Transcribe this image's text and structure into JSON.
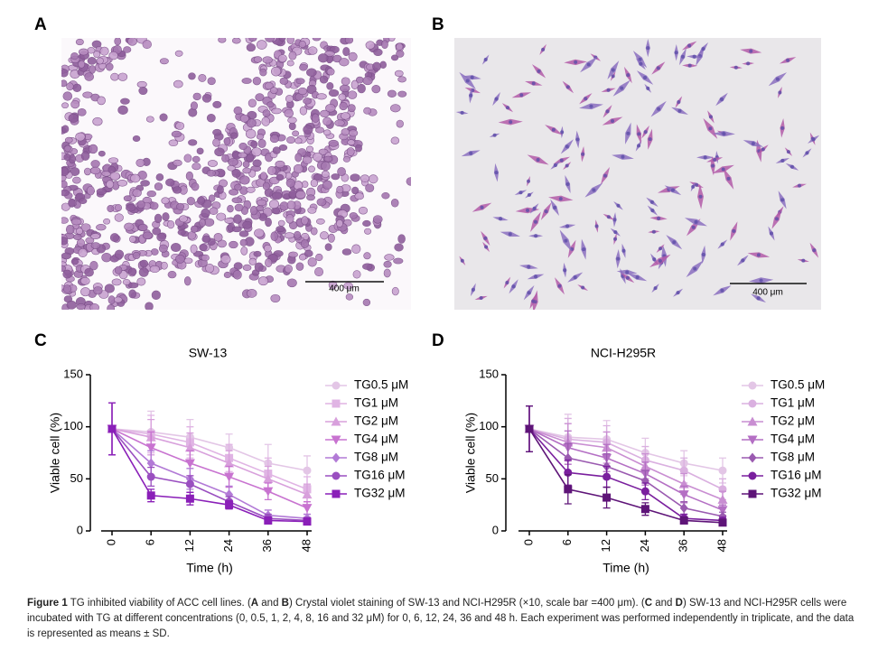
{
  "panel_labels": [
    "A",
    "B",
    "C",
    "D"
  ],
  "micrographs": [
    {
      "scale_bar": "400 μm"
    },
    {
      "scale_bar": "400 μm"
    }
  ],
  "chart_data": [
    {
      "type": "line",
      "title": "SW-13",
      "x_label": "Time (h)",
      "y_label": "Viable cell (%)",
      "categories": [
        "0",
        "6",
        "12",
        "24",
        "36",
        "48"
      ],
      "ylim": [
        0,
        150
      ],
      "yticks": [
        0,
        50,
        100,
        150
      ],
      "series": [
        {
          "name": "TG0.5 μM",
          "color": "#e3c6e6",
          "marker": "circle",
          "values": [
            98,
            95,
            90,
            80,
            65,
            58
          ],
          "errors": [
            25,
            20,
            17,
            13,
            18,
            14
          ]
        },
        {
          "name": "TG1 μM",
          "color": "#e0b4e4",
          "marker": "square",
          "values": [
            98,
            93,
            85,
            70,
            55,
            40
          ],
          "errors": [
            25,
            18,
            15,
            13,
            15,
            12
          ]
        },
        {
          "name": "TG2 μM",
          "color": "#d8a0dc",
          "marker": "triangle-up",
          "values": [
            98,
            90,
            80,
            65,
            50,
            35
          ],
          "errors": [
            25,
            17,
            14,
            12,
            12,
            10
          ]
        },
        {
          "name": "TG4 μM",
          "color": "#c873d0",
          "marker": "triangle-down",
          "values": [
            98,
            80,
            65,
            52,
            38,
            22
          ],
          "errors": [
            25,
            15,
            12,
            10,
            8,
            6
          ]
        },
        {
          "name": "TG8 μM",
          "color": "#b27ad6",
          "marker": "diamond",
          "values": [
            98,
            65,
            50,
            35,
            15,
            12
          ],
          "errors": [
            25,
            12,
            10,
            8,
            5,
            4
          ]
        },
        {
          "name": "TG16 μM",
          "color": "#9a4fc0",
          "marker": "circle",
          "values": [
            98,
            52,
            45,
            28,
            12,
            10
          ],
          "errors": [
            25,
            9,
            8,
            5,
            4,
            3
          ]
        },
        {
          "name": "TG32 μM",
          "color": "#8a1fb8",
          "marker": "square",
          "values": [
            98,
            34,
            31,
            25,
            10,
            9
          ],
          "errors": [
            25,
            6,
            6,
            4,
            3,
            3
          ]
        }
      ]
    },
    {
      "type": "line",
      "title": "NCI-H295R",
      "x_label": "Time (h)",
      "y_label": "Viable cell (%)",
      "categories": [
        "0",
        "6",
        "12",
        "24",
        "36",
        "48"
      ],
      "ylim": [
        0,
        150
      ],
      "yticks": [
        0,
        50,
        100,
        150
      ],
      "series": [
        {
          "name": "TG0.5 μM",
          "color": "#e3c6e6",
          "marker": "circle",
          "values": [
            98,
            90,
            88,
            75,
            65,
            58
          ],
          "errors": [
            22,
            22,
            18,
            14,
            12,
            12
          ]
        },
        {
          "name": "TG1 μM",
          "color": "#dab0e0",
          "marker": "circle",
          "values": [
            98,
            88,
            85,
            68,
            58,
            40
          ],
          "errors": [
            22,
            20,
            16,
            13,
            12,
            10
          ]
        },
        {
          "name": "TG2 μM",
          "color": "#c98ed2",
          "marker": "triangle-up",
          "values": [
            98,
            85,
            80,
            62,
            45,
            30
          ],
          "errors": [
            22,
            18,
            15,
            12,
            10,
            8
          ]
        },
        {
          "name": "TG4 μM",
          "color": "#b46fc4",
          "marker": "triangle-down",
          "values": [
            98,
            80,
            70,
            55,
            35,
            20
          ],
          "errors": [
            22,
            16,
            13,
            11,
            8,
            5
          ]
        },
        {
          "name": "TG8 μM",
          "color": "#9a5ab0",
          "marker": "diamond",
          "values": [
            98,
            70,
            62,
            48,
            22,
            14
          ],
          "errors": [
            22,
            14,
            12,
            10,
            6,
            4
          ]
        },
        {
          "name": "TG16 μM",
          "color": "#7a1f9e",
          "marker": "circle",
          "values": [
            98,
            56,
            52,
            38,
            12,
            10
          ],
          "errors": [
            22,
            12,
            10,
            8,
            4,
            3
          ]
        },
        {
          "name": "TG32 μM",
          "color": "#5e1478",
          "marker": "square",
          "values": [
            98,
            40,
            32,
            21,
            10,
            8
          ],
          "errors": [
            22,
            14,
            10,
            6,
            3,
            3
          ]
        }
      ]
    }
  ],
  "caption": {
    "label": "Figure 1",
    "parts": [
      " TG inhibited viability of ACC cell lines. (",
      "A",
      " and ",
      "B",
      ") Crystal violet staining of SW-13 and NCI-H295R (×10, scale bar =400 μm). (",
      "C",
      " and ",
      "D",
      ") SW-13 and NCI-H295R cells were incubated with TG at different concentrations (0, 0.5, 1, 2, 4, 8, 16 and 32 μM) for 0, 6, 12, 24, 36 and 48 h. Each experiment was performed independently in triplicate, and the data is represented as means ± SD."
    ]
  }
}
